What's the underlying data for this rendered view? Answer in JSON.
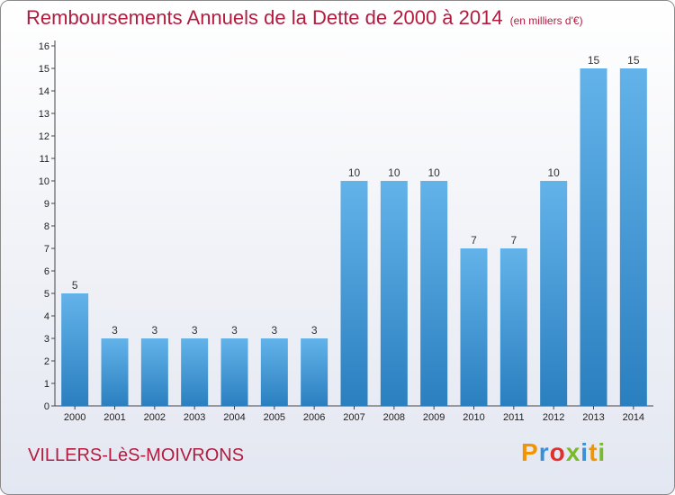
{
  "header": {
    "title": "Remboursements Annuels de la Dette de 2000 à 2014",
    "unit": "(en milliers d'€)"
  },
  "footer": {
    "commune": "VILLERS-LèS-MOIVRONS",
    "logo": "Proxiti",
    "logo_colors": [
      "#f29400",
      "#3a8fd6",
      "#e2312d",
      "#7ab929",
      "#3a8fd6",
      "#f29400",
      "#7ab929"
    ]
  },
  "colors": {
    "bar_light": "#63b3ea",
    "bar_dark": "#2a7fbf",
    "title": "#b31b3f"
  },
  "chart_data": {
    "type": "bar",
    "title": "Remboursements Annuels de la Dette de 2000 à 2014",
    "xlabel": "",
    "ylabel": "",
    "categories": [
      "2000",
      "2001",
      "2002",
      "2003",
      "2004",
      "2005",
      "2006",
      "2007",
      "2008",
      "2009",
      "2010",
      "2011",
      "2012",
      "2013",
      "2014"
    ],
    "values": [
      5,
      3,
      3,
      3,
      3,
      3,
      3,
      10,
      10,
      10,
      7,
      7,
      10,
      15,
      15
    ],
    "ylim": [
      0,
      16
    ],
    "yticks": [
      0,
      1,
      2,
      3,
      4,
      5,
      6,
      7,
      8,
      9,
      10,
      11,
      12,
      13,
      14,
      15,
      16
    ],
    "grid": false,
    "legend": "none"
  }
}
